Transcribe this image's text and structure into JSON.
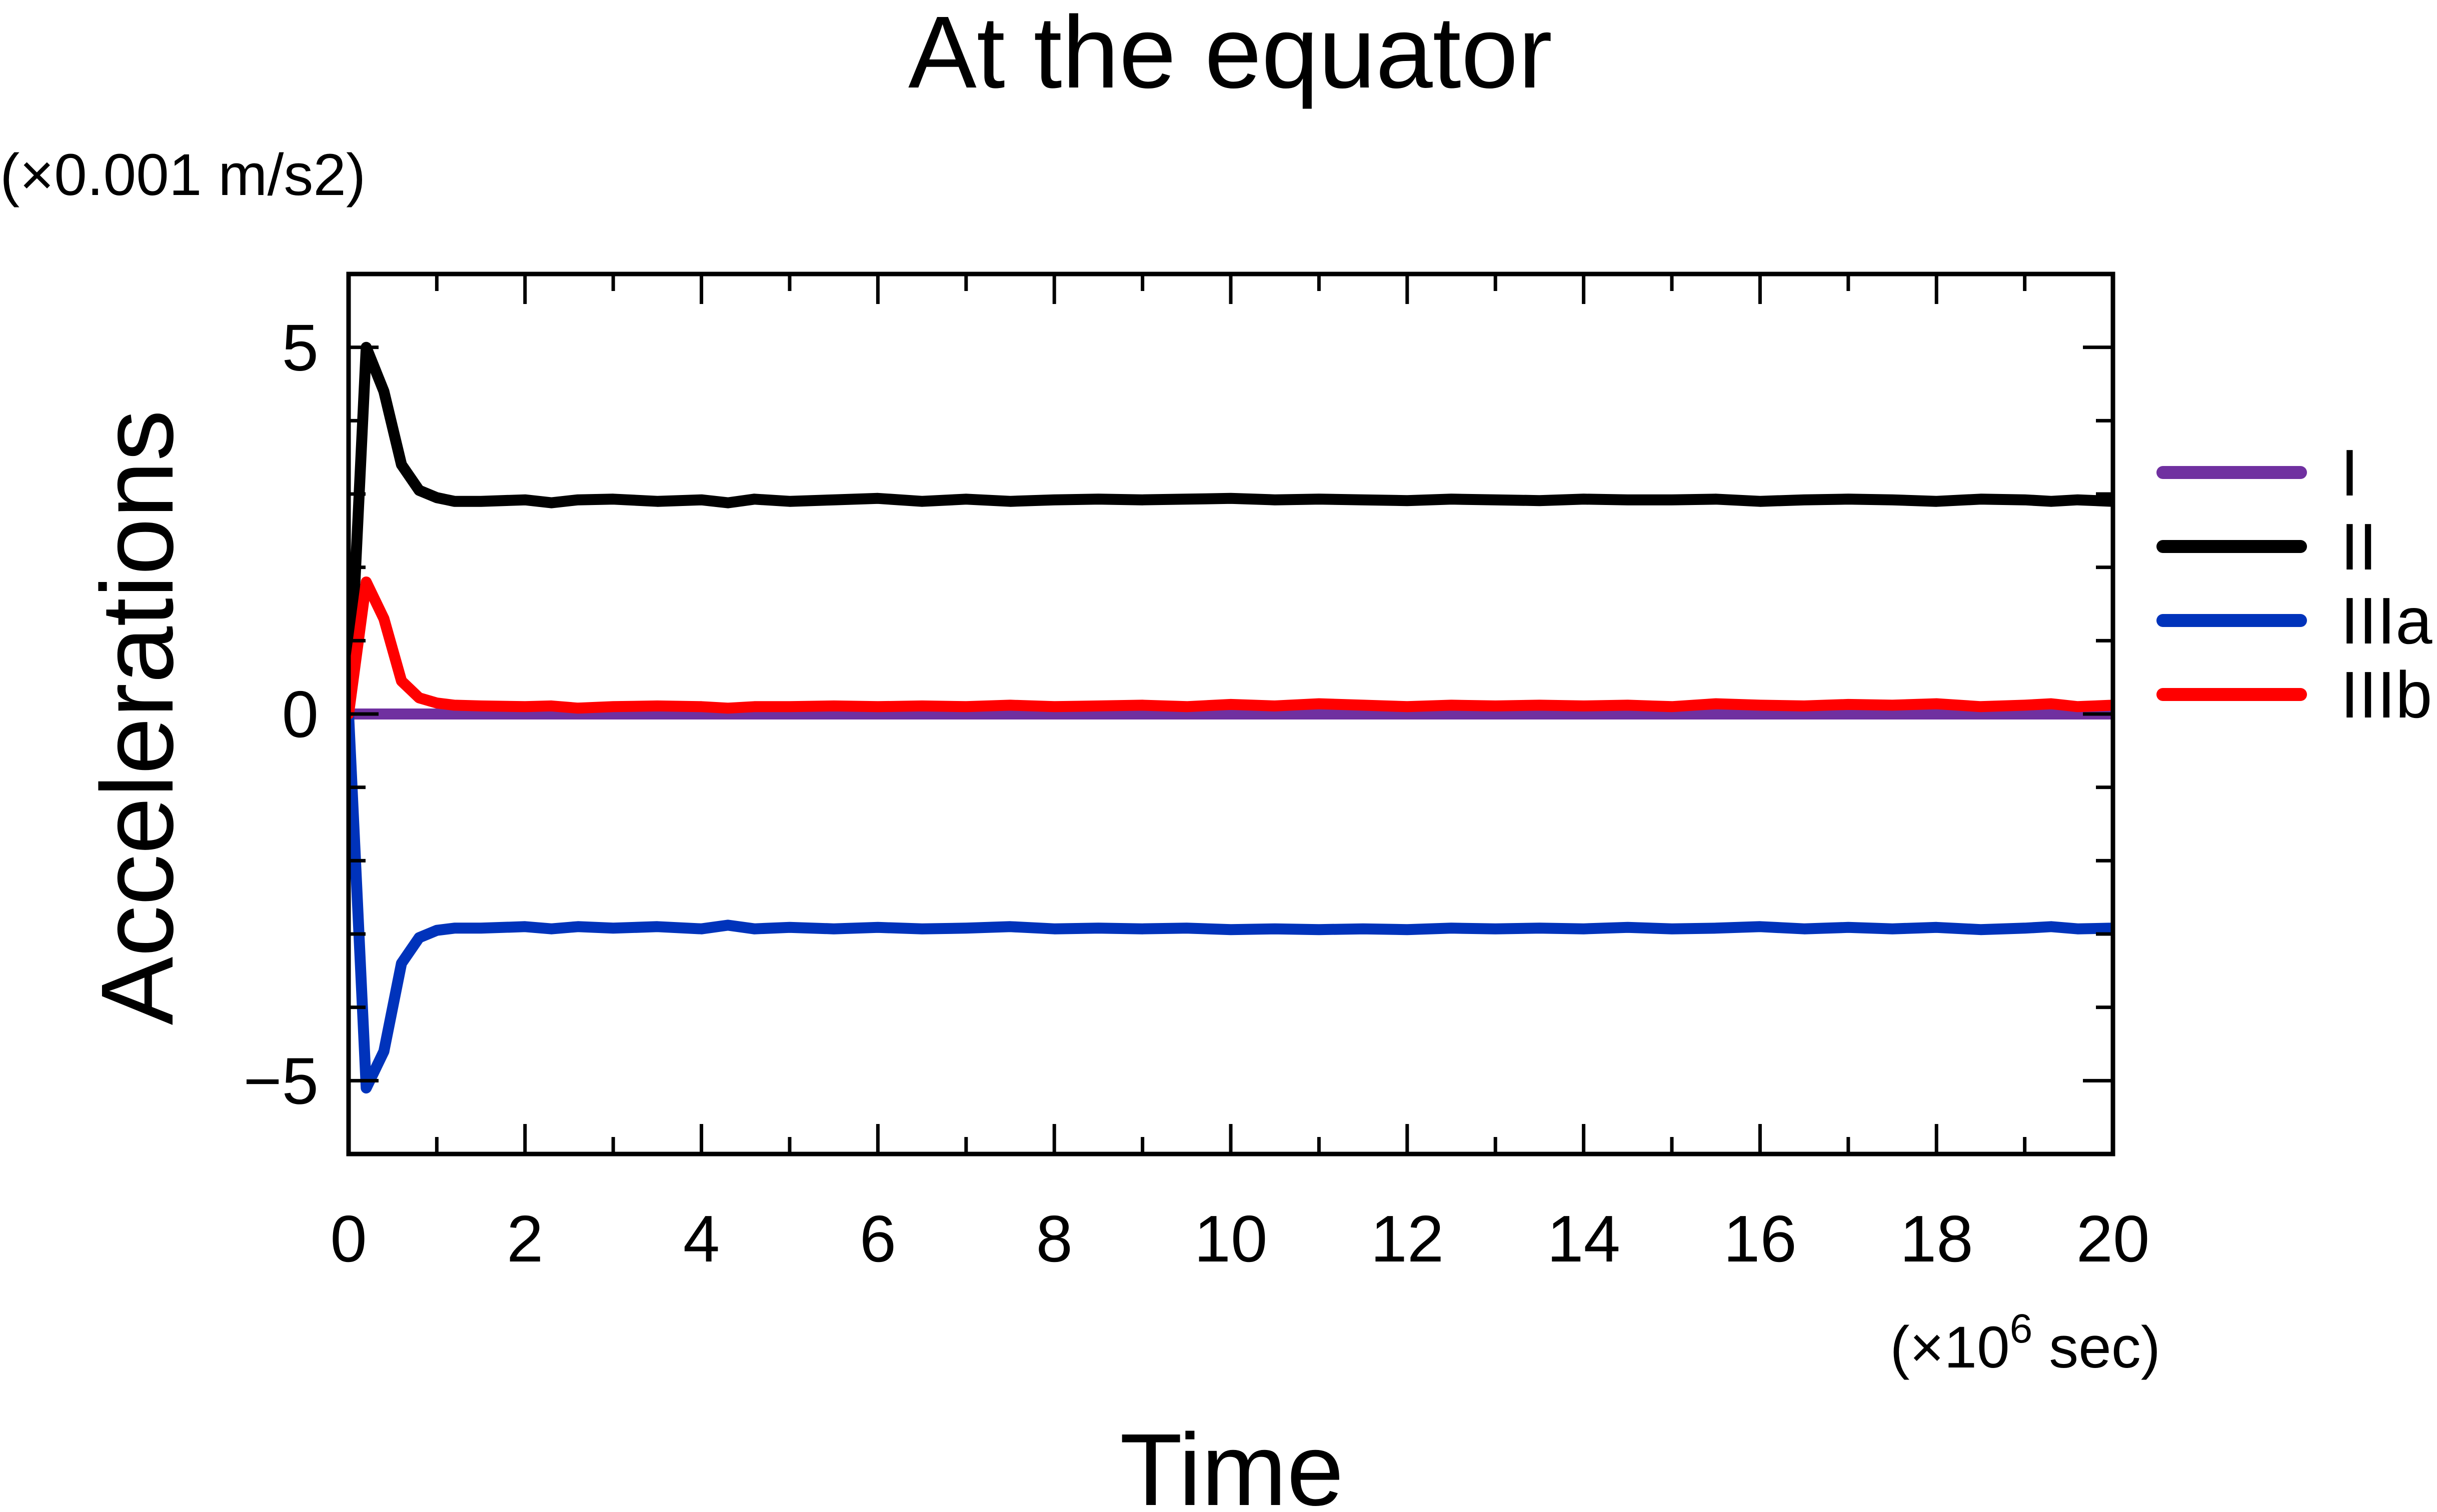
{
  "chart_data": {
    "type": "line",
    "title": "At the equator",
    "y_unit": "(×0.001 m/s2)",
    "x_unit_prefix": "(×10",
    "x_unit_exp": "6",
    "x_unit_suffix": " sec)",
    "xlabel": "Time",
    "ylabel": "Accelerations",
    "xlim": [
      0,
      20
    ],
    "ylim": [
      -6,
      6
    ],
    "x_ticks": [
      0,
      2,
      4,
      6,
      8,
      10,
      12,
      14,
      16,
      18,
      20
    ],
    "x_tick_labels": [
      "0",
      "2",
      "4",
      "6",
      "8",
      "10",
      "12",
      "14",
      "16",
      "18",
      "20"
    ],
    "y_ticks": [
      -5,
      0,
      5
    ],
    "y_tick_labels": [
      "−5",
      "0",
      "5"
    ],
    "legend_position": "right",
    "series": [
      {
        "name": "I",
        "color": "#7030A0",
        "x": [
          0,
          20
        ],
        "values": [
          0,
          0
        ]
      },
      {
        "name": "II",
        "color": "#000000",
        "x": [
          0,
          0.2,
          0.4,
          0.6,
          0.8,
          1.0,
          1.2,
          1.5,
          2.0,
          2.3,
          2.6,
          3.0,
          3.5,
          4.0,
          4.3,
          4.6,
          5.0,
          5.5,
          6.0,
          6.5,
          7.0,
          7.5,
          8.0,
          8.5,
          9.0,
          9.5,
          10.0,
          10.5,
          11.0,
          11.5,
          12.0,
          12.5,
          13.0,
          13.5,
          14.0,
          14.5,
          15.0,
          15.5,
          16.0,
          16.5,
          17.0,
          17.5,
          18.0,
          18.5,
          19.0,
          19.3,
          19.6,
          20.0
        ],
        "values": [
          0,
          5.0,
          4.4,
          3.4,
          3.05,
          2.95,
          2.9,
          2.9,
          2.92,
          2.88,
          2.92,
          2.93,
          2.9,
          2.92,
          2.88,
          2.93,
          2.9,
          2.92,
          2.94,
          2.9,
          2.93,
          2.9,
          2.92,
          2.93,
          2.92,
          2.93,
          2.94,
          2.92,
          2.93,
          2.92,
          2.91,
          2.93,
          2.92,
          2.91,
          2.93,
          2.92,
          2.92,
          2.93,
          2.9,
          2.92,
          2.93,
          2.92,
          2.9,
          2.93,
          2.92,
          2.9,
          2.92,
          2.9
        ]
      },
      {
        "name": "IIIa",
        "color": "#0033BB",
        "x": [
          0,
          0.2,
          0.4,
          0.6,
          0.8,
          1.0,
          1.2,
          1.5,
          2.0,
          2.3,
          2.6,
          3.0,
          3.5,
          4.0,
          4.3,
          4.6,
          5.0,
          5.5,
          6.0,
          6.5,
          7.0,
          7.5,
          8.0,
          8.5,
          9.0,
          9.5,
          10.0,
          10.5,
          11.0,
          11.5,
          12.0,
          12.5,
          13.0,
          13.5,
          14.0,
          14.5,
          15.0,
          15.5,
          16.0,
          16.5,
          17.0,
          17.5,
          18.0,
          18.5,
          19.0,
          19.3,
          19.6,
          20.0
        ],
        "values": [
          0,
          -5.1,
          -4.6,
          -3.4,
          -3.05,
          -2.95,
          -2.92,
          -2.92,
          -2.9,
          -2.93,
          -2.9,
          -2.92,
          -2.9,
          -2.93,
          -2.88,
          -2.93,
          -2.91,
          -2.93,
          -2.91,
          -2.93,
          -2.92,
          -2.9,
          -2.93,
          -2.92,
          -2.93,
          -2.92,
          -2.94,
          -2.93,
          -2.94,
          -2.93,
          -2.94,
          -2.92,
          -2.93,
          -2.92,
          -2.93,
          -2.91,
          -2.93,
          -2.92,
          -2.9,
          -2.93,
          -2.91,
          -2.93,
          -2.91,
          -2.94,
          -2.92,
          -2.9,
          -2.93,
          -2.92
        ]
      },
      {
        "name": "IIIb",
        "color": "#FF0000",
        "x": [
          0,
          0.2,
          0.4,
          0.6,
          0.8,
          1.0,
          1.2,
          1.5,
          2.0,
          2.3,
          2.6,
          3.0,
          3.5,
          4.0,
          4.3,
          4.6,
          5.0,
          5.5,
          6.0,
          6.5,
          7.0,
          7.5,
          8.0,
          8.5,
          9.0,
          9.5,
          10.0,
          10.5,
          11.0,
          11.5,
          12.0,
          12.5,
          13.0,
          13.5,
          14.0,
          14.5,
          15.0,
          15.5,
          16.0,
          16.5,
          17.0,
          17.5,
          18.0,
          18.5,
          19.0,
          19.3,
          19.6,
          20.0
        ],
        "values": [
          0,
          1.8,
          1.3,
          0.45,
          0.22,
          0.15,
          0.12,
          0.11,
          0.1,
          0.11,
          0.08,
          0.1,
          0.11,
          0.1,
          0.08,
          0.1,
          0.1,
          0.11,
          0.1,
          0.11,
          0.1,
          0.12,
          0.1,
          0.11,
          0.12,
          0.1,
          0.13,
          0.11,
          0.14,
          0.12,
          0.1,
          0.12,
          0.11,
          0.12,
          0.11,
          0.12,
          0.1,
          0.14,
          0.12,
          0.11,
          0.13,
          0.12,
          0.14,
          0.1,
          0.12,
          0.14,
          0.1,
          0.12
        ]
      }
    ]
  }
}
